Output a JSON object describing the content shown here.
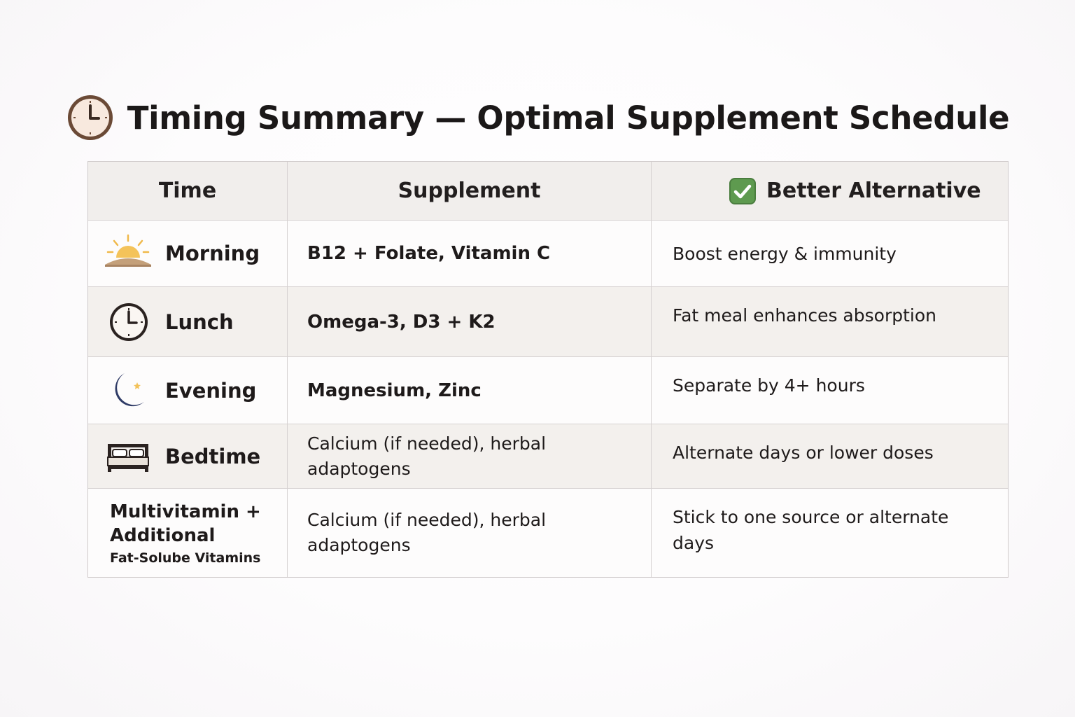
{
  "page": {
    "title": "Timing Summary — Optimal Supplement Schedule",
    "title_icon": "clock-icon"
  },
  "table": {
    "headers": {
      "time": "Time",
      "supplement": "Supplement",
      "alternative": "Better Alternative",
      "alternative_icon": "check-icon"
    },
    "rows": [
      {
        "icon": "sunrise-icon",
        "time": "Morning",
        "supplement": "B12 + Folate, Vitamin C",
        "alternative": "Boost energy & immunity"
      },
      {
        "icon": "clock-icon",
        "time": "Lunch",
        "supplement": "Omega-3, D3 + K2",
        "alternative": "Fat meal enhances absorption"
      },
      {
        "icon": "moon-icon",
        "time": "Evening",
        "supplement": "Magnesium, Zinc",
        "alternative": "Separate by 4+ hours"
      },
      {
        "icon": "bed-icon",
        "time": "Bedtime",
        "supplement": "Calcium (if needed), herbal adaptogens",
        "alternative": "Alternate days or lower doses"
      },
      {
        "time_line1": "Multivitamin +",
        "time_line2": "Additional",
        "time_sub": "Fat-Solube Vitamins",
        "supplement": "Calcium (if needed), herbal adaptogens",
        "alternative": "Stick to one source or alternate days"
      }
    ]
  },
  "colors": {
    "header_bg": "#f1eeec",
    "row_shade": "#f3f0ed",
    "check_green": "#5e9a4f",
    "clock_brown": "#6b4a36",
    "sun_gold": "#f3c25a",
    "moon_navy": "#2f3b66"
  }
}
